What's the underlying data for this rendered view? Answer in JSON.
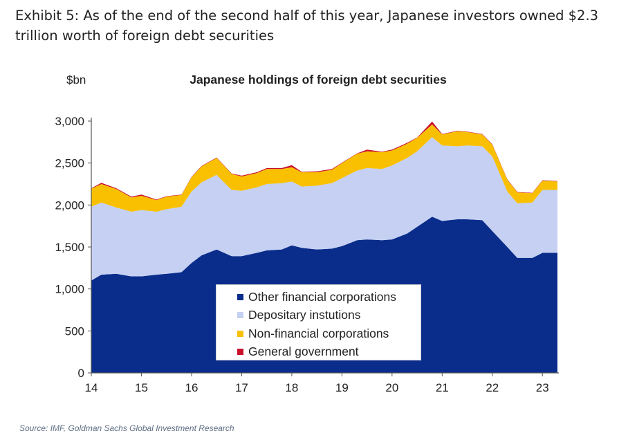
{
  "exhibit": {
    "title": "Exhibit 5: As of the end of the second half of this year, Japanese investors owned $2.3 trillion worth of foreign debt securities"
  },
  "source": "Source: IMF, Goldman Sachs Global Investment Research",
  "chart_data": {
    "type": "area",
    "stacked": true,
    "title": "Japanese holdings of foreign debt securities",
    "unit_label": "$bn",
    "xlabel": "",
    "ylabel": "",
    "ylim": [
      0,
      3000
    ],
    "yticks": [
      0,
      500,
      1000,
      1500,
      2000,
      2500,
      3000
    ],
    "ytick_labels": [
      "0",
      "500",
      "1,000",
      "1,500",
      "2,000",
      "2,500",
      "3,000"
    ],
    "xlim": [
      14,
      23.3
    ],
    "xticks": [
      14,
      15,
      16,
      17,
      18,
      19,
      20,
      21,
      22,
      23
    ],
    "xtick_labels": [
      "14",
      "15",
      "16",
      "17",
      "18",
      "19",
      "20",
      "21",
      "22",
      "23"
    ],
    "grid": false,
    "legend_position": "bottom-center",
    "x": [
      14.0,
      14.2,
      14.5,
      14.8,
      15.0,
      15.3,
      15.5,
      15.8,
      16.0,
      16.2,
      16.5,
      16.8,
      17.0,
      17.3,
      17.5,
      17.8,
      18.0,
      18.2,
      18.5,
      18.8,
      19.0,
      19.3,
      19.5,
      19.8,
      20.0,
      20.3,
      20.5,
      20.8,
      21.0,
      21.3,
      21.5,
      21.8,
      22.0,
      22.3,
      22.5,
      22.8,
      23.0,
      23.3
    ],
    "series": [
      {
        "name": "Other financial corporations",
        "color": "#0a2d8c",
        "values": [
          1100,
          1170,
          1180,
          1150,
          1150,
          1170,
          1180,
          1200,
          1310,
          1400,
          1470,
          1390,
          1390,
          1430,
          1460,
          1470,
          1520,
          1490,
          1470,
          1480,
          1510,
          1580,
          1590,
          1580,
          1590,
          1660,
          1740,
          1860,
          1810,
          1830,
          1830,
          1820,
          1690,
          1500,
          1370,
          1370,
          1430,
          1430
        ]
      },
      {
        "name": "Depositary instutions",
        "color": "#c5d0f2",
        "values": [
          880,
          860,
          790,
          770,
          790,
          750,
          770,
          780,
          850,
          870,
          890,
          790,
          780,
          780,
          790,
          790,
          760,
          730,
          760,
          780,
          810,
          830,
          850,
          850,
          880,
          900,
          900,
          950,
          900,
          870,
          880,
          880,
          890,
          660,
          650,
          660,
          750,
          750
        ]
      },
      {
        "name": "Non-financial corporations",
        "color": "#f8c000",
        "values": [
          215,
          220,
          220,
          170,
          170,
          140,
          150,
          140,
          170,
          190,
          200,
          190,
          170,
          170,
          180,
          170,
          170,
          170,
          160,
          160,
          180,
          200,
          200,
          200,
          180,
          170,
          160,
          150,
          130,
          180,
          160,
          140,
          140,
          140,
          130,
          110,
          110,
          100
        ]
      },
      {
        "name": "General government",
        "color": "#c8102e",
        "values": [
          5,
          15,
          10,
          10,
          15,
          5,
          5,
          5,
          5,
          5,
          5,
          5,
          10,
          10,
          10,
          10,
          25,
          5,
          10,
          10,
          5,
          5,
          20,
          5,
          10,
          10,
          5,
          35,
          5,
          5,
          5,
          5,
          5,
          5,
          5,
          5,
          5,
          5
        ]
      }
    ]
  }
}
